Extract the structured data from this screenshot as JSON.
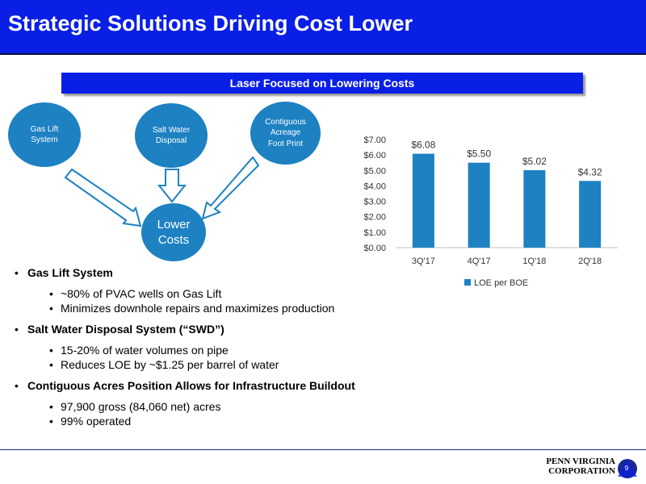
{
  "slide": {
    "title": "Strategic Solutions Driving Cost Lower",
    "banner": "Laser Focused on Lowering Costs",
    "page_number": "9"
  },
  "diagram": {
    "nodes": [
      {
        "id": "gas-lift",
        "label": "Gas Lift\nSystem"
      },
      {
        "id": "salt-water",
        "label": "Salt Water\nDisposal"
      },
      {
        "id": "acreage",
        "label": "Contiguous\nAcreage\nFoot Print"
      },
      {
        "id": "lower-costs",
        "label": "Lower\nCosts"
      }
    ]
  },
  "bullets": [
    {
      "text": "Gas Lift System",
      "sub": [
        "~80% of PVAC wells on Gas Lift",
        "Minimizes downhole repairs and maximizes production"
      ]
    },
    {
      "text": "Salt Water Disposal System (“SWD”)",
      "sub": [
        "15-20% of water volumes on pipe",
        "Reduces LOE by ~$1.25 per barrel of water"
      ]
    },
    {
      "text": "Contiguous Acres Position Allows for Infrastructure Buildout",
      "sub": [
        "97,900 gross (84,060 net) acres",
        "99% operated"
      ]
    }
  ],
  "chart_data": {
    "type": "bar",
    "categories": [
      "3Q'17",
      "4Q'17",
      "1Q'18",
      "2Q'18"
    ],
    "series": [
      {
        "name": "LOE per BOE",
        "values": [
          6.08,
          5.5,
          5.02,
          4.32
        ]
      }
    ],
    "data_labels": [
      "$6.08",
      "$5.50",
      "$5.02",
      "$4.32"
    ],
    "yticks": [
      "$0.00",
      "$1.00",
      "$2.00",
      "$3.00",
      "$4.00",
      "$5.00",
      "$6.00",
      "$7.00"
    ],
    "ylim": [
      0,
      7
    ],
    "grid": false,
    "legend": "bottom",
    "bar_color": "#1D81C2"
  },
  "logo": {
    "line1": "PENN VIRGINIA",
    "line2": "CORPORATION"
  },
  "colors": {
    "title_bar": "#0A1FE6",
    "banner": "#0A1FE6",
    "circle": "#1D81C2",
    "bar": "#1D81C2"
  }
}
